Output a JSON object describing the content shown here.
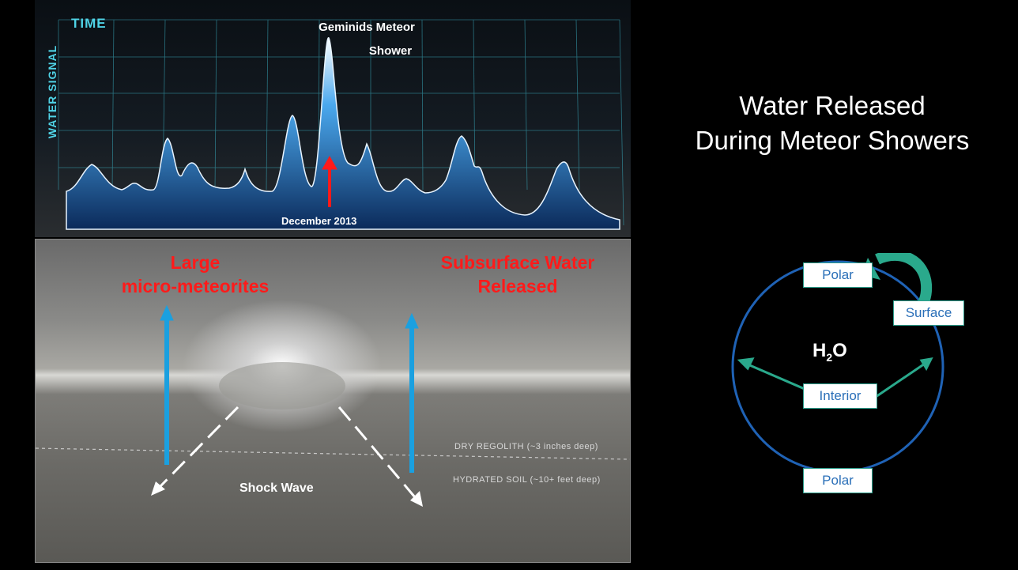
{
  "title_line1": "Water Released",
  "title_line2": "During Meteor Showers",
  "chart": {
    "x_label": "TIME",
    "y_label": "WATER SIGNAL",
    "title_line1": "Geminids Meteor",
    "title_line2": "Shower",
    "annotation": "December 2013"
  },
  "impact": {
    "label_left_line1": "Large",
    "label_left_line2": "micro-meteorites",
    "label_right_line1": "Subsurface Water",
    "label_right_line2": "Released",
    "shock_wave": "Shock Wave",
    "dry_layer": "DRY REGOLITH (~3 inches deep)",
    "hydrated_layer": "HYDRATED SOIL (~10+ feet deep)"
  },
  "cycle": {
    "center_main": "H",
    "center_sub": "2",
    "center_tail": "O",
    "polar_top": "Polar",
    "surface": "Surface",
    "interior": "Interior",
    "polar_bottom": "Polar"
  },
  "colors": {
    "accent_red": "#ff1a1a",
    "arrow_blue": "#1aa0e0",
    "cycle_blue": "#1f62b5",
    "cycle_green": "#2aa98c",
    "axis_cyan": "#4fd3e6"
  }
}
